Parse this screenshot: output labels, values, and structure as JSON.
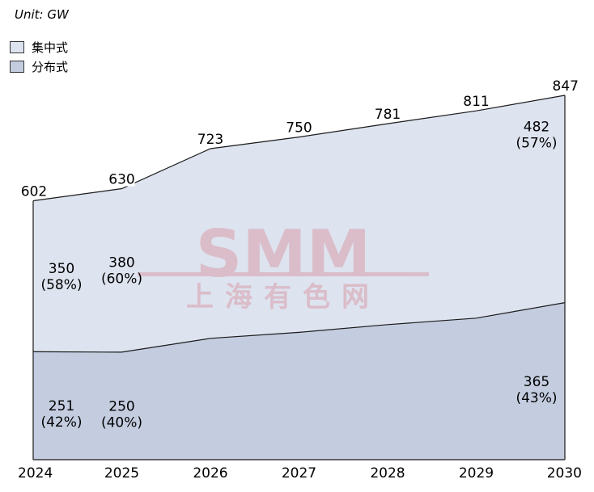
{
  "chart_data": {
    "type": "area",
    "unit_label": "Unit: GW",
    "x": [
      "2024",
      "2025",
      "2026",
      "2027",
      "2028",
      "2029",
      "2030"
    ],
    "series": [
      {
        "name": "分布式",
        "values": [
          251,
          250,
          282,
          296,
          314,
          329,
          365
        ],
        "color": "#c4cde0"
      },
      {
        "name": "集中式",
        "values": [
          350,
          380,
          441,
          454,
          467,
          482,
          482
        ],
        "color": "#dde3ef"
      }
    ],
    "totals": [
      602,
      630,
      723,
      750,
      781,
      811,
      847
    ],
    "segment_labels": [
      {
        "x": "2024",
        "series": "集中式",
        "value": "350",
        "pct": "(58%)"
      },
      {
        "x": "2025",
        "series": "集中式",
        "value": "380",
        "pct": "(60%)"
      },
      {
        "x": "2030",
        "series": "集中式",
        "value": "482",
        "pct": "(57%)"
      },
      {
        "x": "2024",
        "series": "分布式",
        "value": "251",
        "pct": "(42%)"
      },
      {
        "x": "2025",
        "series": "分布式",
        "value": "250",
        "pct": "(40%)"
      },
      {
        "x": "2030",
        "series": "分布式",
        "value": "365",
        "pct": "(43%)"
      }
    ],
    "ylim": [
      0,
      847
    ],
    "grid": false,
    "legend_placement": "top-left",
    "watermark": {
      "top": "SMM",
      "bottom": "上海有色网"
    }
  }
}
